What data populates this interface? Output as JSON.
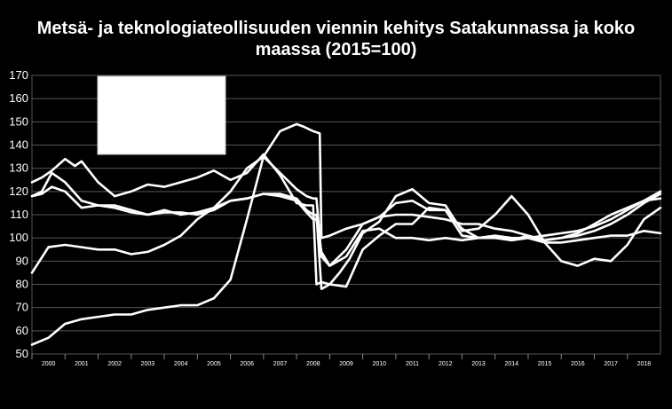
{
  "chart_data": {
    "type": "line",
    "title_line1": "Metsä- ja teknologiateollisuuden viennin kehitys Satakunnassa ja koko",
    "title_line2": "maassa (2015=100)",
    "ylim": [
      50,
      170
    ],
    "yticks": [
      50,
      60,
      70,
      80,
      90,
      100,
      110,
      120,
      130,
      140,
      150,
      160,
      170
    ],
    "xlim": [
      2000,
      2019
    ],
    "xticks": [
      "2000",
      "2001",
      "2002",
      "2003",
      "2004",
      "2005",
      "2006",
      "2007",
      "2008",
      "2009",
      "2010",
      "2011",
      "2012",
      "2013",
      "2014",
      "2015",
      "2016",
      "2017",
      "2018"
    ],
    "grid": true,
    "legend": "box top-left (blank)",
    "line_color": "#ffffff",
    "series": [
      {
        "x": [
          2000.0,
          2000.5,
          2001.0,
          2001.5,
          2002.0,
          2002.5,
          2003.0,
          2003.5,
          2004.0,
          2004.5,
          2005.0,
          2005.5,
          2006.0,
          2006.5,
          2007.0,
          2007.5,
          2008.0,
          2008.2,
          2008.5,
          2008.7,
          2008.75,
          2009.0,
          2009.5,
          2010.0,
          2010.5,
          2011.0,
          2011.5,
          2012.0,
          2012.5,
          2013.0,
          2013.5,
          2014.0,
          2014.5,
          2015.0,
          2015.5,
          2016.0,
          2016.5,
          2017.0,
          2017.5,
          2018.0,
          2018.5,
          2019.0
        ],
        "values": [
          54,
          57,
          63,
          65,
          66,
          67,
          67,
          69,
          70,
          71,
          71,
          74,
          82,
          108,
          135,
          146,
          149,
          148,
          146,
          145,
          100,
          101,
          104,
          106,
          109,
          110,
          110,
          109,
          108,
          106,
          106,
          104,
          103,
          101,
          99,
          100,
          101,
          103,
          106,
          110,
          115,
          119
        ]
      },
      {
        "x": [
          2000.0,
          2000.5,
          2001.0,
          2001.5,
          2002.0,
          2002.5,
          2003.0,
          2003.5,
          2004.0,
          2004.5,
          2005.0,
          2005.5,
          2006.0,
          2006.5,
          2007.0,
          2007.5,
          2008.0,
          2008.3,
          2008.5,
          2008.6,
          2008.75,
          2009.0,
          2009.5,
          2010.0,
          2010.5,
          2011.0,
          2011.5,
          2012.0,
          2012.5,
          2013.0,
          2013.5,
          2014.0,
          2014.5,
          2015.0,
          2015.5,
          2016.0,
          2016.5,
          2017.0,
          2017.5,
          2018.0,
          2018.5,
          2019.0
        ],
        "values": [
          85,
          96,
          97,
          96,
          95,
          95,
          93,
          94,
          97,
          101,
          108,
          113,
          120,
          130,
          135,
          128,
          121,
          118,
          117,
          117,
          92,
          88,
          92,
          103,
          104,
          100,
          100,
          99,
          100,
          99,
          100,
          101,
          99,
          100,
          98,
          98,
          99,
          100,
          101,
          101,
          103,
          102
        ]
      },
      {
        "x": [
          2000.0,
          2000.3,
          2000.6,
          2001.0,
          2001.3,
          2001.5,
          2002.0,
          2002.5,
          2003.0,
          2003.5,
          2004.0,
          2004.5,
          2005.0,
          2005.5,
          2006.0,
          2006.5,
          2007.0,
          2007.5,
          2008.0,
          2008.3,
          2008.5,
          2008.6,
          2008.75,
          2009.0,
          2009.3,
          2009.6,
          2010.0,
          2010.5,
          2011.0,
          2011.5,
          2012.0,
          2012.5,
          2013.0,
          2013.5,
          2014.0,
          2014.5,
          2015.0,
          2015.5,
          2016.0,
          2016.5,
          2017.0,
          2017.5,
          2018.0,
          2018.5,
          2019.0
        ],
        "values": [
          124,
          126,
          129,
          134,
          131,
          133,
          124,
          118,
          120,
          123,
          122,
          124,
          126,
          129,
          125,
          128,
          136,
          127,
          115,
          114,
          114,
          80,
          81,
          80,
          85,
          91,
          102,
          107,
          118,
          121,
          115,
          114,
          103,
          104,
          110,
          118,
          110,
          98,
          90,
          88,
          91,
          90,
          97,
          108,
          113
        ]
      },
      {
        "x": [
          2000.0,
          2000.3,
          2000.6,
          2001.0,
          2001.5,
          2002.0,
          2002.5,
          2003.0,
          2003.5,
          2004.0,
          2004.5,
          2005.0,
          2005.5,
          2006.0,
          2006.5,
          2007.0,
          2007.5,
          2008.0,
          2008.3,
          2008.5,
          2008.6,
          2008.75,
          2009.0,
          2009.5,
          2010.0,
          2010.5,
          2011.0,
          2011.5,
          2012.0,
          2012.5,
          2013.0,
          2013.5,
          2014.0,
          2014.5,
          2015.0,
          2015.5,
          2016.0,
          2016.5,
          2017.0,
          2017.5,
          2018.0,
          2018.5,
          2019.0
        ],
        "values": [
          118,
          120,
          128,
          124,
          116,
          114,
          113,
          111,
          110,
          111,
          111,
          110,
          112,
          116,
          117,
          119,
          119,
          117,
          112,
          110,
          110,
          78,
          80,
          79,
          95,
          101,
          106,
          106,
          113,
          112,
          101,
          100,
          101,
          100,
          100,
          101,
          102,
          103,
          105,
          108,
          112,
          116,
          117
        ]
      },
      {
        "x": [
          2000.0,
          2000.3,
          2000.6,
          2001.0,
          2001.5,
          2002.0,
          2002.5,
          2003.0,
          2003.5,
          2004.0,
          2004.5,
          2005.0,
          2005.5,
          2006.0,
          2006.5,
          2007.0,
          2007.5,
          2008.0,
          2008.3,
          2008.5,
          2008.6,
          2008.75,
          2009.0,
          2009.5,
          2010.0,
          2010.5,
          2011.0,
          2011.5,
          2012.0,
          2012.5,
          2013.0,
          2013.5,
          2014.0,
          2014.5,
          2015.0,
          2015.5,
          2016.0,
          2016.5,
          2017.0,
          2017.5,
          2018.0,
          2018.5,
          2019.0
        ],
        "values": [
          118,
          119,
          122,
          120,
          113,
          114,
          114,
          112,
          110,
          112,
          110,
          111,
          113,
          116,
          117,
          119,
          118,
          116,
          111,
          108,
          108,
          94,
          88,
          95,
          106,
          109,
          115,
          116,
          112,
          112,
          104,
          100,
          100,
          99,
          101,
          99,
          100,
          102,
          106,
          110,
          113,
          116,
          120
        ]
      }
    ]
  }
}
